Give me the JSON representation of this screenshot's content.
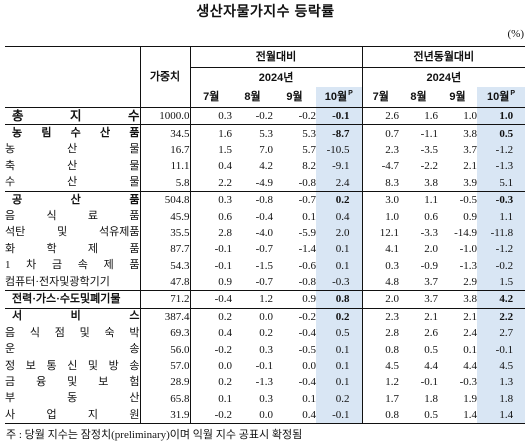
{
  "title": "생산자물가지수 등락률",
  "unit": "(%)",
  "table": {
    "weight_header": "가중치",
    "groups": [
      {
        "label": "전월대비",
        "year": "2024년",
        "months": [
          "7월",
          "8월",
          "9월",
          "10월"
        ],
        "prelim_mark": "P"
      },
      {
        "label": "전년동월대비",
        "year": "2024년",
        "months": [
          "7월",
          "8월",
          "9월",
          "10월"
        ],
        "prelim_mark": "P"
      }
    ],
    "rows": [
      {
        "label": "총 지 수",
        "weight": "1000.0",
        "mom": [
          "0.3",
          "-0.2",
          "-0.2",
          "-0.1"
        ],
        "yoy": [
          "2.6",
          "1.6",
          "1.0",
          "1.0"
        ]
      },
      {
        "label": "농 림 수 산 품",
        "weight": "34.5",
        "mom": [
          "1.6",
          "5.3",
          "5.3",
          "-8.7"
        ],
        "yoy": [
          "0.7",
          "-1.1",
          "3.8",
          "0.5"
        ]
      },
      {
        "label": "농 산 물",
        "weight": "16.7",
        "mom": [
          "1.5",
          "7.0",
          "5.7",
          "-10.5"
        ],
        "yoy": [
          "2.3",
          "-3.5",
          "3.7",
          "-1.2"
        ]
      },
      {
        "label": "축 산 물",
        "weight": "11.1",
        "mom": [
          "0.4",
          "4.2",
          "8.2",
          "-9.1"
        ],
        "yoy": [
          "-4.7",
          "-2.2",
          "2.1",
          "-1.3"
        ]
      },
      {
        "label": "수 산 물",
        "weight": "5.8",
        "mom": [
          "2.2",
          "-4.9",
          "-0.8",
          "2.4"
        ],
        "yoy": [
          "8.3",
          "3.8",
          "3.9",
          "5.1"
        ]
      },
      {
        "label": "공 산 품",
        "weight": "504.8",
        "mom": [
          "0.3",
          "-0.8",
          "-0.7",
          "0.2"
        ],
        "yoy": [
          "3.0",
          "1.1",
          "-0.5",
          "-0.3"
        ]
      },
      {
        "label": "음 식 료 품",
        "weight": "45.9",
        "mom": [
          "0.6",
          "-0.4",
          "0.1",
          "0.4"
        ],
        "yoy": [
          "1.0",
          "0.6",
          "0.9",
          "1.1"
        ]
      },
      {
        "label": "석탄 및 석유제품",
        "weight": "35.5",
        "mom": [
          "2.8",
          "-4.0",
          "-5.9",
          "2.0"
        ],
        "yoy": [
          "12.1",
          "-3.3",
          "-14.9",
          "-11.8"
        ]
      },
      {
        "label": "화 학 제 품",
        "weight": "87.7",
        "mom": [
          "-0.1",
          "-0.7",
          "-1.4",
          "0.1"
        ],
        "yoy": [
          "4.1",
          "2.0",
          "-1.0",
          "-1.2"
        ]
      },
      {
        "label": "1 차 금 속 제 품",
        "weight": "54.3",
        "mom": [
          "-0.1",
          "-1.5",
          "-0.6",
          "0.1"
        ],
        "yoy": [
          "0.3",
          "-0.9",
          "-1.3",
          "-0.2"
        ]
      },
      {
        "label": "컴퓨터·전자및광학기기",
        "weight": "47.8",
        "mom": [
          "0.9",
          "-0.7",
          "-0.8",
          "-0.3"
        ],
        "yoy": [
          "4.8",
          "3.7",
          "2.9",
          "1.5"
        ]
      },
      {
        "label": "전력·가스·수도및폐기물",
        "weight": "71.2",
        "mom": [
          "-0.4",
          "1.2",
          "0.9",
          "0.8"
        ],
        "yoy": [
          "2.0",
          "3.7",
          "3.8",
          "4.2"
        ]
      },
      {
        "label": "서 비 스",
        "weight": "387.4",
        "mom": [
          "0.2",
          "0.0",
          "-0.2",
          "0.2"
        ],
        "yoy": [
          "2.3",
          "2.1",
          "2.1",
          "2.2"
        ]
      },
      {
        "label": "음 식 점 및 숙 박",
        "weight": "69.3",
        "mom": [
          "0.4",
          "0.2",
          "-0.4",
          "0.5"
        ],
        "yoy": [
          "2.8",
          "2.6",
          "2.4",
          "2.7"
        ]
      },
      {
        "label": "운 송",
        "weight": "56.0",
        "mom": [
          "-0.2",
          "0.3",
          "-0.5",
          "0.1"
        ],
        "yoy": [
          "0.8",
          "0.5",
          "0.1",
          "-0.1"
        ]
      },
      {
        "label": "정 보 통 신 및 방 송",
        "weight": "57.0",
        "mom": [
          "0.0",
          "-0.1",
          "0.0",
          "0.1"
        ],
        "yoy": [
          "4.5",
          "4.4",
          "4.4",
          "4.5"
        ]
      },
      {
        "label": "금 융 및 보 험",
        "weight": "28.9",
        "mom": [
          "0.2",
          "-1.3",
          "-0.4",
          "0.1"
        ],
        "yoy": [
          "1.2",
          "-0.1",
          "-0.3",
          "1.3"
        ]
      },
      {
        "label": "부 동 산",
        "weight": "65.8",
        "mom": [
          "0.1",
          "0.3",
          "0.1",
          "0.2"
        ],
        "yoy": [
          "1.7",
          "1.8",
          "1.9",
          "1.8"
        ]
      },
      {
        "label": "사 업 지 원",
        "weight": "31.9",
        "mom": [
          "-0.2",
          "0.0",
          "0.4",
          "-0.1"
        ],
        "yoy": [
          "0.8",
          "0.5",
          "1.4",
          "1.4"
        ]
      }
    ]
  },
  "footnote": "주 : 당월 지수는 잠정치(preliminary)이며 익월 지수 공표시 확정됨",
  "colors": {
    "preliminary_column": "#d9e6f4"
  }
}
